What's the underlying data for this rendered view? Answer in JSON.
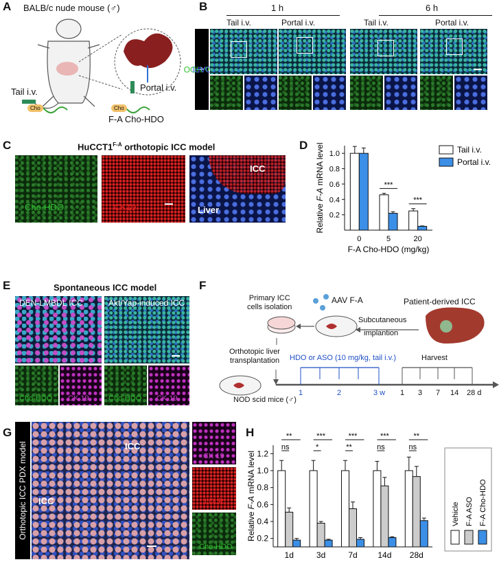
{
  "panels": {
    "A": "A",
    "B": "B",
    "C": "C",
    "D": "D",
    "E": "E",
    "F": "F",
    "G": "G",
    "H": "H"
  },
  "panelA": {
    "mouse": "BALB/c nude mouse (♂)",
    "tail": "Tail i.v.",
    "portal": "Portal i.v.",
    "cho": "Cho",
    "cho2": "Cho",
    "construct": "F-A Cho-HDO"
  },
  "panelB": {
    "time1": "1 h",
    "time2": "6 h",
    "col1": "Tail i.v.",
    "col2": "Portal i.v.",
    "col3": "Tail i.v.",
    "col4": "Portal i.v.",
    "side_label_green": "Cho-HDO",
    "side_label_plus": " + ",
    "side_label_blue": "DAPI"
  },
  "panelC": {
    "title_pre": "HuCCT1",
    "title_sup": "F-A",
    "title_post": " orthotopic ICC model",
    "img1": "Cho-HDO",
    "img2": "CK19",
    "img3_icc": "ICC",
    "img3_liver": "Liver"
  },
  "panelE": {
    "title": "Spontaneous ICC model",
    "left": "DEN-LMBDL ICC",
    "right": "Akt/Yap-induced ICC",
    "s1": "Cho-HDO",
    "s2": "CK 19",
    "s3": "Cho-HDO",
    "s4": "CK 19"
  },
  "panelF": {
    "primary": "Primary ICC\ncells isolation",
    "aav": "AAV F-A",
    "patient": "Patient-derived ICC",
    "subq": "Subcutaneous",
    "implant": "implantion",
    "ortho": "Orthotopic liver\ntransplantation",
    "hdo": "HDO or ASO (10 mg/kg, tail i.v.)",
    "harvest": "Harvest",
    "mice": "NOD scid mice (♂)",
    "ticks_blue": [
      "1",
      "2",
      "3 w"
    ],
    "ticks_black": [
      "1",
      "3",
      "7",
      "14",
      "28 d"
    ]
  },
  "panelG": {
    "side": "Orthotopic ICC PDX model",
    "icc1": "ICC",
    "icc2": "ICC",
    "s1": "CK 19",
    "s2": "LDLR",
    "s3": "Cho-HDO"
  },
  "chart_data": [
    {
      "type": "bar",
      "panel": "D",
      "categories": [
        "0",
        "5",
        "20"
      ],
      "xlabel": "F-A Cho-HDO (mg/kg)",
      "ylabel_pre": "Relative ",
      "ylabel_italic": "F-A",
      "ylabel_post": " mRNA level",
      "ylim": [
        0,
        1.1
      ],
      "yticks": [
        "0.2",
        "0.4",
        "0.6",
        "0.8",
        "1.0"
      ],
      "series": [
        {
          "name": "Tail i.v.",
          "color": "#ffffff",
          "values": [
            1.0,
            0.46,
            0.25
          ],
          "errors": [
            0.09,
            0.02,
            0.03
          ]
        },
        {
          "name": "Portal i.v.",
          "color": "#3b8fe6",
          "values": [
            1.0,
            0.22,
            0.05
          ],
          "errors": [
            0.07,
            0.02,
            0.005
          ]
        }
      ],
      "significance": [
        {
          "category": "5",
          "label": "***"
        },
        {
          "category": "20",
          "label": "***"
        }
      ],
      "legend": "top-right"
    },
    {
      "type": "bar",
      "panel": "H",
      "categories": [
        "1d",
        "3d",
        "7d",
        "14d",
        "28d"
      ],
      "ylabel_pre": "Relative ",
      "ylabel_italic": "F-A",
      "ylabel_post": " mRNA level",
      "ylim": [
        0.1,
        1.3
      ],
      "yticks": [
        "0.2",
        "0.4",
        "0.6",
        "0.8",
        "1.0",
        "1.2"
      ],
      "series": [
        {
          "name": "Vehicle",
          "color": "#ffffff",
          "values": [
            1.0,
            1.0,
            1.0,
            1.0,
            1.0
          ],
          "errors": [
            0.12,
            0.12,
            0.12,
            0.11,
            0.16
          ]
        },
        {
          "name": "F-A ASO",
          "color": "#cccccc",
          "values": [
            0.51,
            0.38,
            0.55,
            0.82,
            0.93
          ],
          "errors": [
            0.05,
            0.02,
            0.08,
            0.1,
            0.12
          ]
        },
        {
          "name": "F-A Cho-HDO",
          "color": "#3b8fe6",
          "values": [
            0.18,
            0.18,
            0.19,
            0.21,
            0.41
          ],
          "errors": [
            0.02,
            0.01,
            0.02,
            0.01,
            0.03
          ]
        }
      ],
      "significance_top": [
        "**",
        "***",
        "***",
        "***",
        "**"
      ],
      "significance_mid": [
        "ns",
        "*",
        "**",
        "ns",
        "ns"
      ],
      "legend": "right"
    }
  ],
  "colors": {
    "tail": "#ffffff",
    "portal": "#3b8fe6",
    "aso": "#cccccc",
    "hdo": "#3b8fe6",
    "accent_blue": "#1f4fc4",
    "green_label": "#2fbf2f",
    "red_label": "#e02020",
    "magenta_label": "#c040c0"
  }
}
